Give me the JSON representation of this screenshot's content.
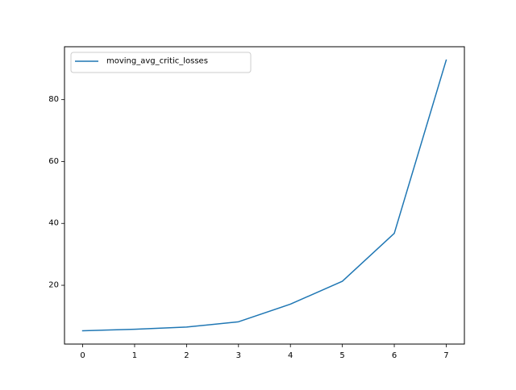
{
  "chart_data": {
    "type": "line",
    "x": [
      0,
      1,
      2,
      3,
      4,
      5,
      6,
      7
    ],
    "series": [
      {
        "name": "moving_avg_critic_losses",
        "values": [
          5.3,
          5.8,
          6.5,
          8.2,
          13.9,
          21.3,
          36.8,
          92.8
        ],
        "color": "#1f77b4"
      }
    ],
    "xlim": [
      -0.35,
      7.35
    ],
    "ylim": [
      1.0,
      97.1
    ],
    "xticks": [
      0,
      1,
      2,
      3,
      4,
      5,
      6,
      7
    ],
    "yticks": [
      20,
      40,
      60,
      80
    ],
    "grid": false,
    "legend_position": "top-left"
  }
}
